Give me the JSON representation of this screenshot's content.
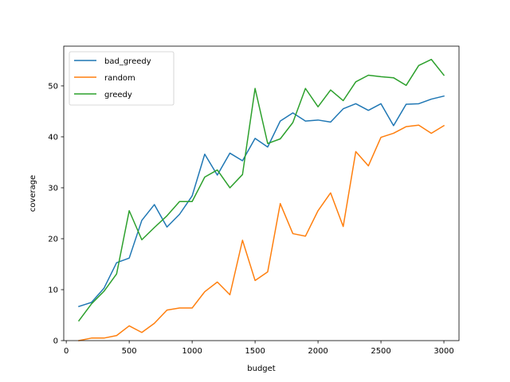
{
  "chart_data": {
    "type": "line",
    "title": "",
    "xlabel": "budget",
    "ylabel": "coverage",
    "xlim": [
      -20,
      3120
    ],
    "ylim": [
      0,
      57.8
    ],
    "xticks": [
      "0",
      "500",
      "1000",
      "1500",
      "2000",
      "2500",
      "3000"
    ],
    "yticks": [
      "0",
      "10",
      "20",
      "30",
      "40",
      "50"
    ],
    "legend_position": "top-left",
    "grid": false,
    "x": [
      100,
      200,
      300,
      400,
      500,
      600,
      700,
      800,
      900,
      1000,
      1100,
      1200,
      1300,
      1400,
      1500,
      1600,
      1700,
      1800,
      1900,
      2000,
      2100,
      2200,
      2300,
      2400,
      2500,
      2600,
      2700,
      2800,
      2900,
      3000
    ],
    "series": [
      {
        "name": "bad_greedy",
        "color": "#1f77b4",
        "values": [
          6.7,
          7.5,
          10.3,
          15.3,
          16.2,
          23.6,
          26.7,
          22.3,
          24.8,
          28.4,
          36.6,
          32.5,
          36.8,
          35.3,
          39.7,
          38.0,
          43.1,
          44.7,
          43.1,
          43.3,
          42.9,
          45.5,
          46.5,
          45.2,
          46.5,
          42.2,
          46.4,
          46.5,
          47.4,
          48.0
        ]
      },
      {
        "name": "random",
        "color": "#ff7f0e",
        "values": [
          0.0,
          0.5,
          0.5,
          1.0,
          2.9,
          1.6,
          3.4,
          6.0,
          6.4,
          6.4,
          9.6,
          11.5,
          9.0,
          19.7,
          11.8,
          13.5,
          26.9,
          21.0,
          20.5,
          25.5,
          29.0,
          22.4,
          37.1,
          34.3,
          39.9,
          40.7,
          42.0,
          42.3,
          40.7,
          42.2
        ]
      },
      {
        "name": "greedy",
        "color": "#2ca02c",
        "values": [
          3.9,
          7.2,
          9.7,
          13.1,
          25.5,
          19.8,
          22.2,
          24.5,
          27.3,
          27.3,
          32.1,
          33.5,
          30.0,
          32.6,
          49.5,
          38.7,
          39.6,
          42.8,
          49.5,
          45.9,
          49.2,
          47.1,
          50.8,
          52.1,
          51.8,
          51.6,
          50.1,
          54.0,
          55.2,
          52.1
        ]
      }
    ]
  }
}
